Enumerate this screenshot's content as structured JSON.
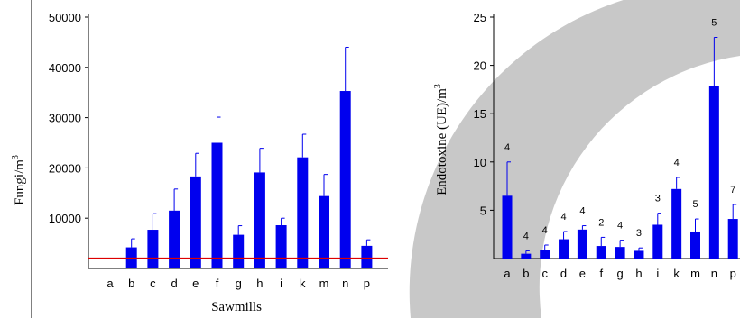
{
  "chart_data": [
    {
      "type": "bar",
      "xlabel": "Sawmills",
      "ylabel": "Fungi/m",
      "ylabel_sup": "3",
      "categories": [
        "a",
        "b",
        "c",
        "d",
        "e",
        "f",
        "g",
        "h",
        "i",
        "k",
        "m",
        "n",
        "p"
      ],
      "values": [
        0,
        4200,
        7700,
        11500,
        18300,
        25000,
        6700,
        19100,
        8600,
        22100,
        14400,
        35300,
        4500
      ],
      "errors": [
        0,
        1700,
        3200,
        4300,
        4600,
        5100,
        1800,
        4800,
        1400,
        4600,
        4300,
        8700,
        1200
      ],
      "ylim": [
        0,
        50000
      ],
      "yticks": [
        "10000",
        "20000",
        "30000",
        "40000",
        "50000"
      ],
      "reference_line": 2000,
      "colors": {
        "bar": "#0000ee",
        "reference": "#dd0000"
      }
    },
    {
      "type": "bar",
      "xlabel": "",
      "ylabel": "Endotoxine (UE)/m",
      "ylabel_sup": "3",
      "categories": [
        "a",
        "b",
        "c",
        "d",
        "e",
        "f",
        "g",
        "h",
        "i",
        "k",
        "m",
        "n",
        "p"
      ],
      "values": [
        6.5,
        0.5,
        0.9,
        2.0,
        3.0,
        1.3,
        1.2,
        0.8,
        3.5,
        7.2,
        2.8,
        17.9,
        4.1
      ],
      "errors": [
        3.5,
        0.3,
        0.5,
        0.8,
        0.4,
        0.9,
        0.7,
        0.3,
        1.2,
        1.2,
        1.3,
        5.0,
        1.5
      ],
      "n_labels": [
        "4",
        "4",
        "4",
        "4",
        "4",
        "2",
        "4",
        "3",
        "3",
        "4",
        "5",
        "5",
        "7"
      ],
      "ylim": [
        0,
        25
      ],
      "yticks": [
        "5",
        "10",
        "15",
        "20",
        "25"
      ],
      "colors": {
        "bar": "#0000ee",
        "background_ring": "#c8c8c8"
      }
    }
  ]
}
